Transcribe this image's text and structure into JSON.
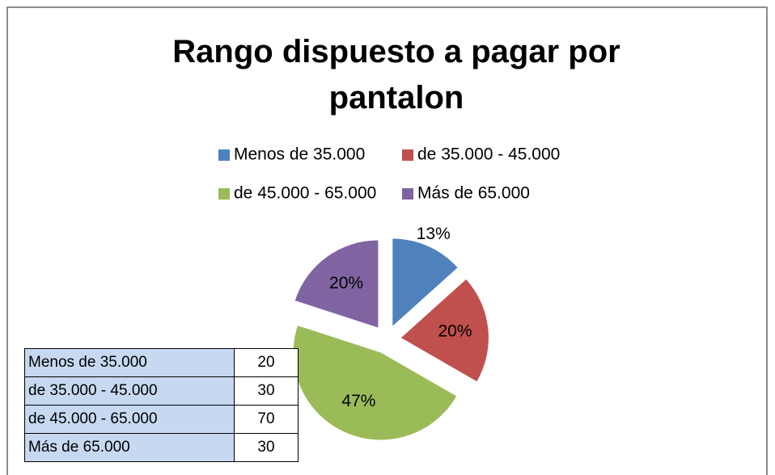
{
  "chart_data": {
    "type": "pie",
    "title": "Rango dispuesto a pagar por pantalon",
    "categories": [
      "Menos de 35.000",
      "de 35.000 - 45.000",
      "de 45.000 - 65.000",
      "Más  de  65.000"
    ],
    "values": [
      13.33,
      20,
      46.67,
      20
    ],
    "value_labels": [
      "13%",
      "20%",
      "47%",
      "20%"
    ],
    "colors": [
      "#4f81bd",
      "#c0504d",
      "#9bbb59",
      "#8064a2"
    ],
    "legend": "top"
  },
  "table": {
    "rows": [
      [
        "Menos de 35.000",
        20
      ],
      [
        "de 35.000 - 45.000",
        30
      ],
      [
        "de 45.000 - 65.000",
        70
      ],
      [
        "Más  de  65.000",
        30
      ]
    ]
  }
}
